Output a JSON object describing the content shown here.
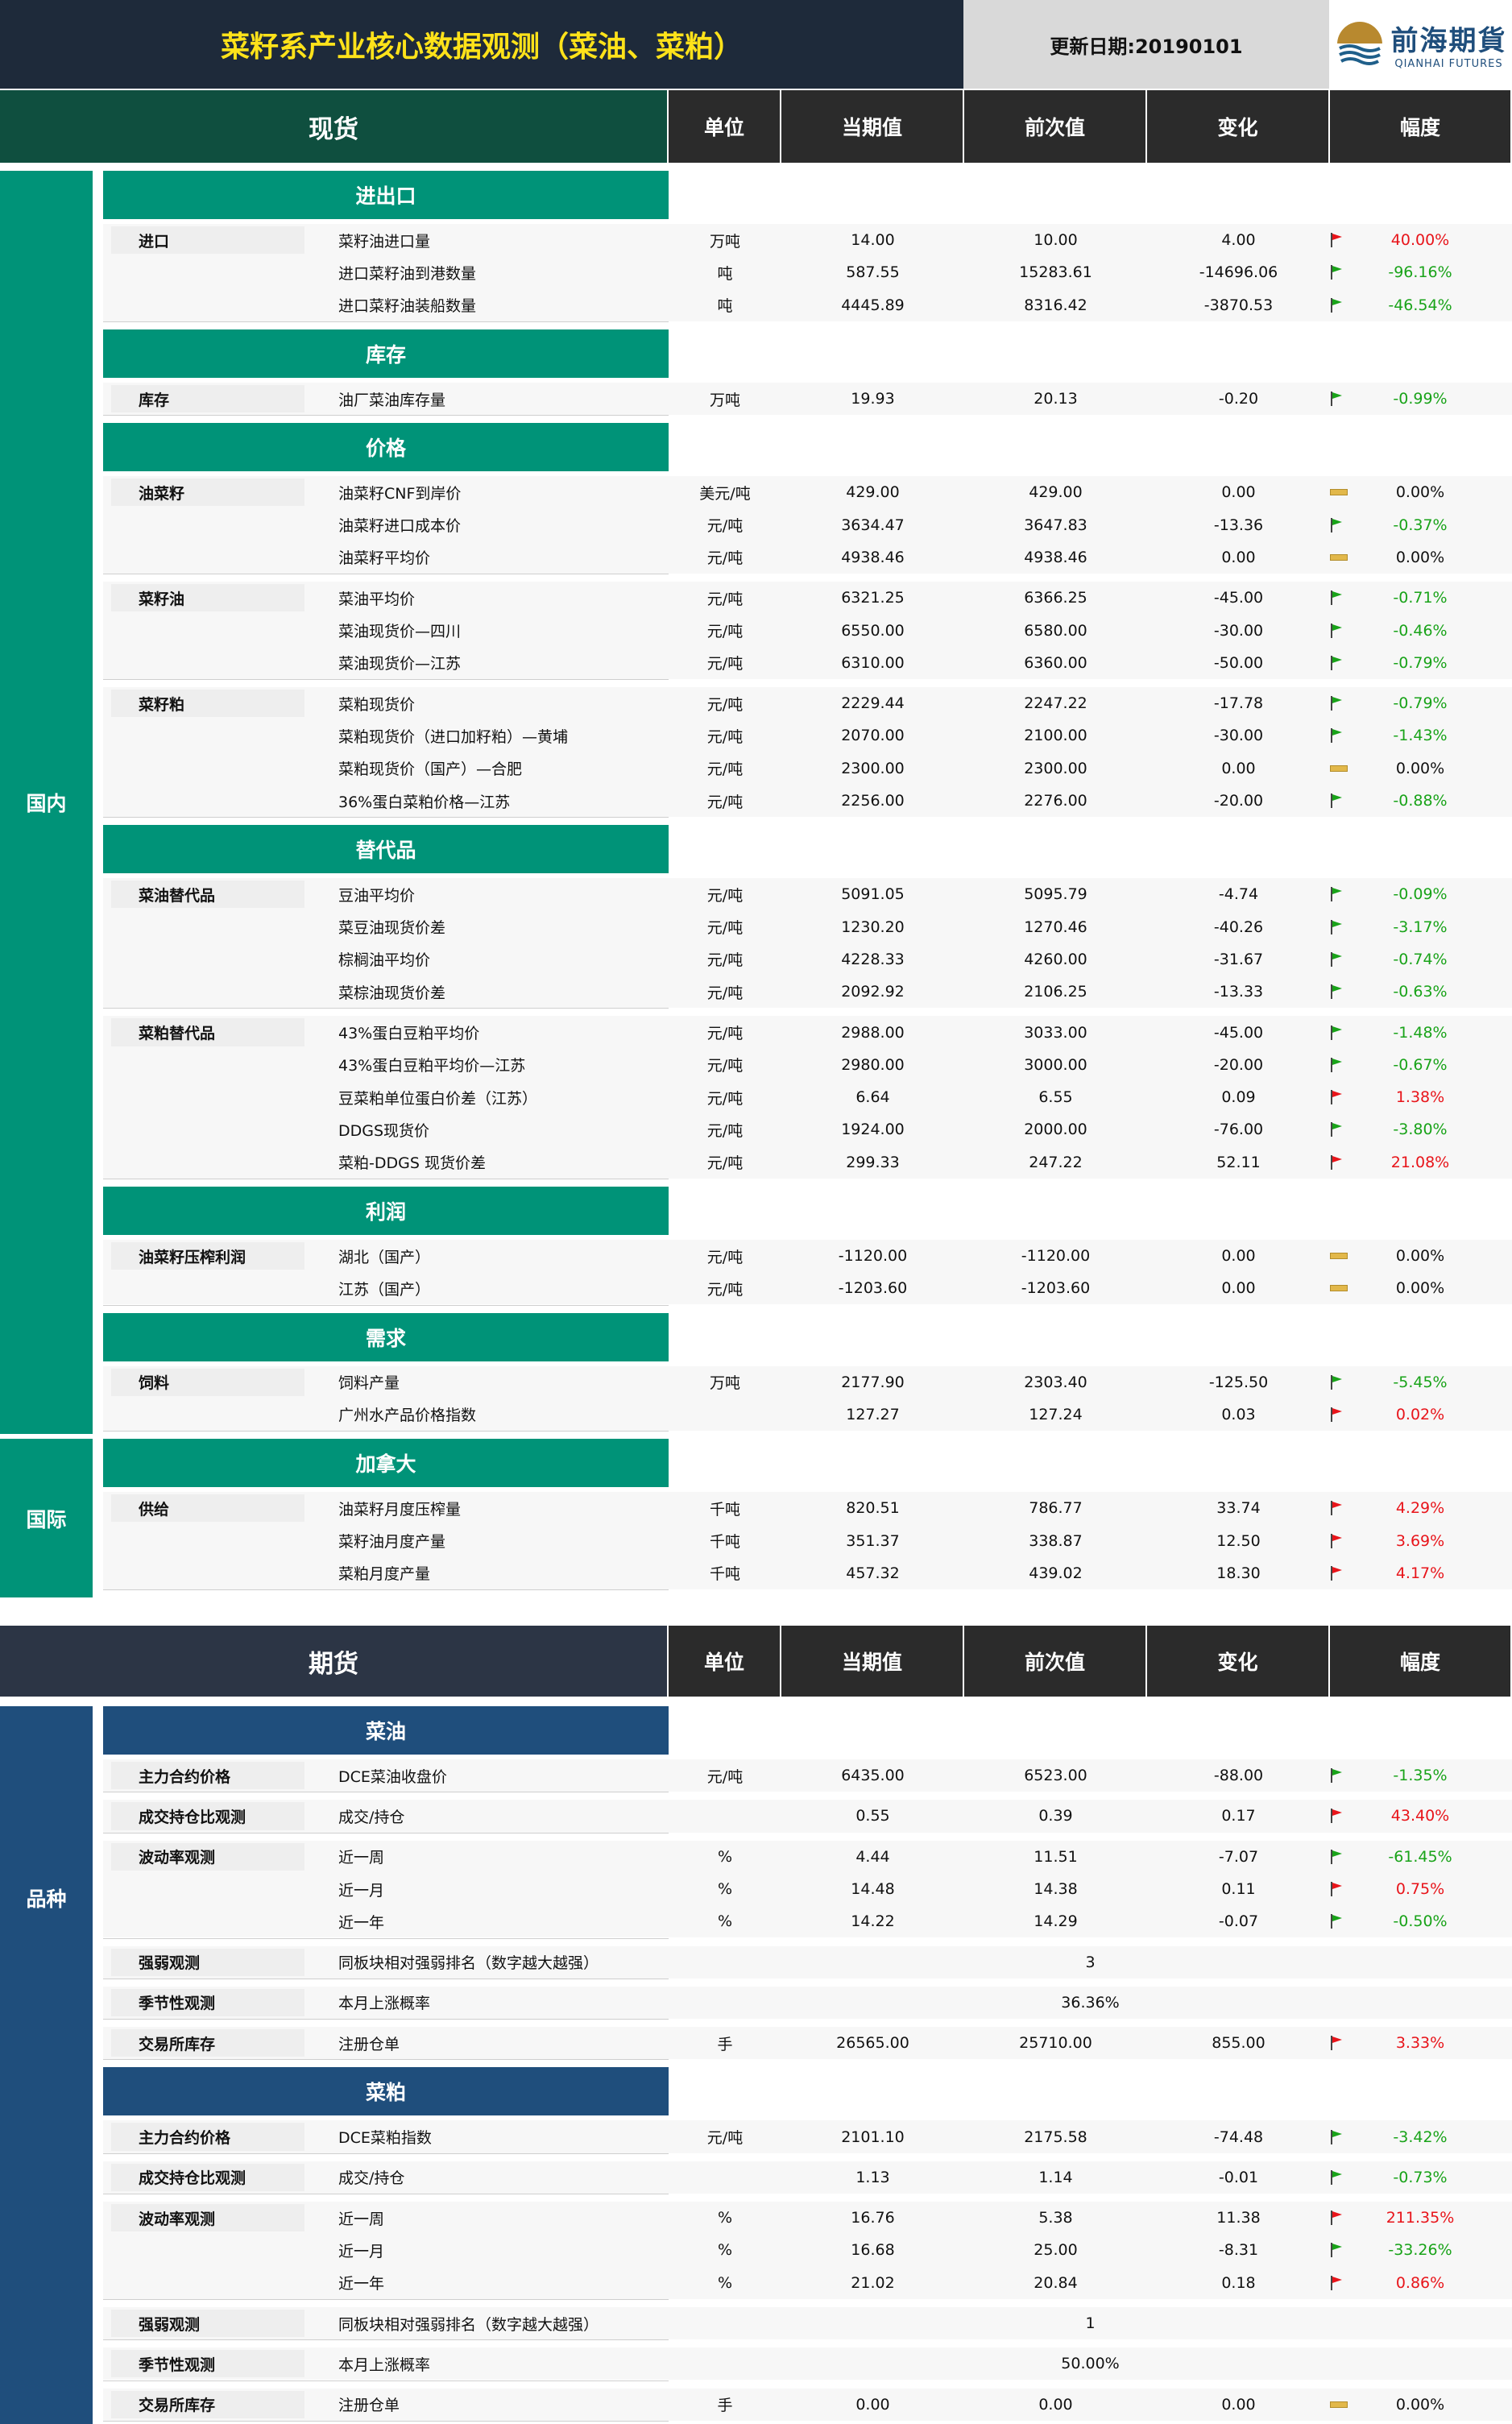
{
  "header": {
    "title": "菜籽系产业核心数据观测（菜油、菜粕）",
    "date_label": "更新日期:20190101",
    "logo_cn": "前海期貨",
    "logo_en": "QIANHAI FUTURES"
  },
  "colors": {
    "dark_header": "#1e2a3a",
    "spot_green": "#0f4f3f",
    "teal": "#009378",
    "futures_head": "#2c3545",
    "navy": "#1f4e7c",
    "up_red": "#e8141a",
    "down_green": "#19a319"
  },
  "spot_header": {
    "title": "现货",
    "unit": "单位",
    "current": "当期值",
    "previous": "前次值",
    "change": "变化",
    "pct": "幅度"
  },
  "futures_header": {
    "title": "期货",
    "unit": "单位",
    "current": "当期值",
    "previous": "前次值",
    "change": "变化",
    "pct": "幅度"
  },
  "side_labels": {
    "domestic": "国内",
    "international": "国际",
    "variety": "品种"
  },
  "spot": [
    {
      "section": "进出口",
      "groups": [
        {
          "name": "进口",
          "rows": [
            {
              "item": "菜籽油进口量",
              "unit": "万吨",
              "cur": "14.00",
              "prev": "10.00",
              "chg": "4.00",
              "pct": "40.00%",
              "dir": "up"
            },
            {
              "item": "进口菜籽油到港数量",
              "unit": "吨",
              "cur": "587.55",
              "prev": "15283.61",
              "chg": "-14696.06",
              "pct": "-96.16%",
              "dir": "down"
            },
            {
              "item": "进口菜籽油装船数量",
              "unit": "吨",
              "cur": "4445.89",
              "prev": "8316.42",
              "chg": "-3870.53",
              "pct": "-46.54%",
              "dir": "down"
            }
          ]
        }
      ]
    },
    {
      "section": "库存",
      "groups": [
        {
          "name": "库存",
          "rows": [
            {
              "item": "油厂菜油库存量",
              "unit": "万吨",
              "cur": "19.93",
              "prev": "20.13",
              "chg": "-0.20",
              "pct": "-0.99%",
              "dir": "down"
            }
          ]
        }
      ]
    },
    {
      "section": "价格",
      "groups": [
        {
          "name": "油菜籽",
          "rows": [
            {
              "item": "油菜籽CNF到岸价",
              "unit": "美元/吨",
              "cur": "429.00",
              "prev": "429.00",
              "chg": "0.00",
              "pct": "0.00%",
              "dir": "flat"
            },
            {
              "item": "油菜籽进口成本价",
              "unit": "元/吨",
              "cur": "3634.47",
              "prev": "3647.83",
              "chg": "-13.36",
              "pct": "-0.37%",
              "dir": "down"
            },
            {
              "item": "油菜籽平均价",
              "unit": "元/吨",
              "cur": "4938.46",
              "prev": "4938.46",
              "chg": "0.00",
              "pct": "0.00%",
              "dir": "flat"
            }
          ]
        },
        {
          "name": "菜籽油",
          "rows": [
            {
              "item": "菜油平均价",
              "unit": "元/吨",
              "cur": "6321.25",
              "prev": "6366.25",
              "chg": "-45.00",
              "pct": "-0.71%",
              "dir": "down"
            },
            {
              "item": "菜油现货价—四川",
              "unit": "元/吨",
              "cur": "6550.00",
              "prev": "6580.00",
              "chg": "-30.00",
              "pct": "-0.46%",
              "dir": "down"
            },
            {
              "item": "菜油现货价—江苏",
              "unit": "元/吨",
              "cur": "6310.00",
              "prev": "6360.00",
              "chg": "-50.00",
              "pct": "-0.79%",
              "dir": "down"
            }
          ]
        },
        {
          "name": "菜籽粕",
          "rows": [
            {
              "item": "菜粕现货价",
              "unit": "元/吨",
              "cur": "2229.44",
              "prev": "2247.22",
              "chg": "-17.78",
              "pct": "-0.79%",
              "dir": "down"
            },
            {
              "item": "菜粕现货价（进口加籽粕）—黄埔",
              "unit": "元/吨",
              "cur": "2070.00",
              "prev": "2100.00",
              "chg": "-30.00",
              "pct": "-1.43%",
              "dir": "down"
            },
            {
              "item": "菜粕现货价（国产）—合肥",
              "unit": "元/吨",
              "cur": "2300.00",
              "prev": "2300.00",
              "chg": "0.00",
              "pct": "0.00%",
              "dir": "flat"
            },
            {
              "item": "36%蛋白菜粕价格—江苏",
              "unit": "元/吨",
              "cur": "2256.00",
              "prev": "2276.00",
              "chg": "-20.00",
              "pct": "-0.88%",
              "dir": "down"
            }
          ]
        }
      ]
    },
    {
      "section": "替代品",
      "groups": [
        {
          "name": "菜油替代品",
          "rows": [
            {
              "item": "豆油平均价",
              "unit": "元/吨",
              "cur": "5091.05",
              "prev": "5095.79",
              "chg": "-4.74",
              "pct": "-0.09%",
              "dir": "down"
            },
            {
              "item": "菜豆油现货价差",
              "unit": "元/吨",
              "cur": "1230.20",
              "prev": "1270.46",
              "chg": "-40.26",
              "pct": "-3.17%",
              "dir": "down"
            },
            {
              "item": "棕榈油平均价",
              "unit": "元/吨",
              "cur": "4228.33",
              "prev": "4260.00",
              "chg": "-31.67",
              "pct": "-0.74%",
              "dir": "down"
            },
            {
              "item": "菜棕油现货价差",
              "unit": "元/吨",
              "cur": "2092.92",
              "prev": "2106.25",
              "chg": "-13.33",
              "pct": "-0.63%",
              "dir": "down"
            }
          ]
        },
        {
          "name": "菜粕替代品",
          "rows": [
            {
              "item": "43%蛋白豆粕平均价",
              "unit": "元/吨",
              "cur": "2988.00",
              "prev": "3033.00",
              "chg": "-45.00",
              "pct": "-1.48%",
              "dir": "down"
            },
            {
              "item": "43%蛋白豆粕平均价—江苏",
              "unit": "元/吨",
              "cur": "2980.00",
              "prev": "3000.00",
              "chg": "-20.00",
              "pct": "-0.67%",
              "dir": "down"
            },
            {
              "item": "豆菜粕单位蛋白价差（江苏）",
              "unit": "元/吨",
              "cur": "6.64",
              "prev": "6.55",
              "chg": "0.09",
              "pct": "1.38%",
              "dir": "up"
            },
            {
              "item": "DDGS现货价",
              "unit": "元/吨",
              "cur": "1924.00",
              "prev": "2000.00",
              "chg": "-76.00",
              "pct": "-3.80%",
              "dir": "down"
            },
            {
              "item": "菜粕-DDGS 现货价差",
              "unit": "元/吨",
              "cur": "299.33",
              "prev": "247.22",
              "chg": "52.11",
              "pct": "21.08%",
              "dir": "up"
            }
          ]
        }
      ]
    },
    {
      "section": "利润",
      "groups": [
        {
          "name": "油菜籽压榨利润",
          "rows": [
            {
              "item": "湖北（国产）",
              "unit": "元/吨",
              "cur": "-1120.00",
              "prev": "-1120.00",
              "chg": "0.00",
              "pct": "0.00%",
              "dir": "flat"
            },
            {
              "item": "江苏（国产）",
              "unit": "元/吨",
              "cur": "-1203.60",
              "prev": "-1203.60",
              "chg": "0.00",
              "pct": "0.00%",
              "dir": "flat"
            }
          ]
        }
      ]
    },
    {
      "section": "需求",
      "groups": [
        {
          "name": "饲料",
          "rows": [
            {
              "item": "饲料产量",
              "unit": "万吨",
              "cur": "2177.90",
              "prev": "2303.40",
              "chg": "-125.50",
              "pct": "-5.45%",
              "dir": "down"
            },
            {
              "item": "广州水产品价格指数",
              "unit": "",
              "cur": "127.27",
              "prev": "127.24",
              "chg": "0.03",
              "pct": "0.02%",
              "dir": "up"
            }
          ]
        }
      ]
    },
    {
      "section": "加拿大",
      "groups": [
        {
          "name": "供给",
          "rows": [
            {
              "item": "油菜籽月度压榨量",
              "unit": "千吨",
              "cur": "820.51",
              "prev": "786.77",
              "chg": "33.74",
              "pct": "4.29%",
              "dir": "up"
            },
            {
              "item": "菜籽油月度产量",
              "unit": "千吨",
              "cur": "351.37",
              "prev": "338.87",
              "chg": "12.50",
              "pct": "3.69%",
              "dir": "up"
            },
            {
              "item": "菜粕月度产量",
              "unit": "千吨",
              "cur": "457.32",
              "prev": "439.02",
              "chg": "18.30",
              "pct": "4.17%",
              "dir": "up"
            }
          ]
        }
      ]
    }
  ],
  "futures": [
    {
      "section": "菜油",
      "groups": [
        {
          "name": "主力合约价格",
          "rows": [
            {
              "item": "DCE菜油收盘价",
              "unit": "元/吨",
              "cur": "6435.00",
              "prev": "6523.00",
              "chg": "-88.00",
              "pct": "-1.35%",
              "dir": "down"
            }
          ]
        },
        {
          "name": "成交持仓比观测",
          "rows": [
            {
              "item": "成交/持仓",
              "unit": "",
              "cur": "0.55",
              "prev": "0.39",
              "chg": "0.17",
              "pct": "43.40%",
              "dir": "up"
            }
          ]
        },
        {
          "name": "波动率观测",
          "rows": [
            {
              "item": "近一周",
              "unit": "%",
              "cur": "4.44",
              "prev": "11.51",
              "chg": "-7.07",
              "pct": "-61.45%",
              "dir": "down"
            },
            {
              "item": "近一月",
              "unit": "%",
              "cur": "14.48",
              "prev": "14.38",
              "chg": "0.11",
              "pct": "0.75%",
              "dir": "up"
            },
            {
              "item": "近一年",
              "unit": "%",
              "cur": "14.22",
              "prev": "14.29",
              "chg": "-0.07",
              "pct": "-0.50%",
              "dir": "down"
            }
          ]
        },
        {
          "name": "强弱观测",
          "rows": [
            {
              "item": "同板块相对强弱排名（数字越大越强）",
              "merged": "3"
            }
          ]
        },
        {
          "name": "季节性观测",
          "rows": [
            {
              "item": "本月上涨概率",
              "merged": "36.36%"
            }
          ]
        },
        {
          "name": "交易所库存",
          "rows": [
            {
              "item": "注册仓单",
              "unit": "手",
              "cur": "26565.00",
              "prev": "25710.00",
              "chg": "855.00",
              "pct": "3.33%",
              "dir": "up"
            }
          ]
        }
      ]
    },
    {
      "section": "菜粕",
      "groups": [
        {
          "name": "主力合约价格",
          "rows": [
            {
              "item": "DCE菜粕指数",
              "unit": "元/吨",
              "cur": "2101.10",
              "prev": "2175.58",
              "chg": "-74.48",
              "pct": "-3.42%",
              "dir": "down"
            }
          ]
        },
        {
          "name": "成交持仓比观测",
          "rows": [
            {
              "item": "成交/持仓",
              "unit": "",
              "cur": "1.13",
              "prev": "1.14",
              "chg": "-0.01",
              "pct": "-0.73%",
              "dir": "down"
            }
          ]
        },
        {
          "name": "波动率观测",
          "rows": [
            {
              "item": "近一周",
              "unit": "%",
              "cur": "16.76",
              "prev": "5.38",
              "chg": "11.38",
              "pct": "211.35%",
              "dir": "up"
            },
            {
              "item": "近一月",
              "unit": "%",
              "cur": "16.68",
              "prev": "25.00",
              "chg": "-8.31",
              "pct": "-33.26%",
              "dir": "down"
            },
            {
              "item": "近一年",
              "unit": "%",
              "cur": "21.02",
              "prev": "20.84",
              "chg": "0.18",
              "pct": "0.86%",
              "dir": "up"
            }
          ]
        },
        {
          "name": "强弱观测",
          "rows": [
            {
              "item": "同板块相对强弱排名（数字越大越强）",
              "merged": "1"
            }
          ]
        },
        {
          "name": "季节性观测",
          "rows": [
            {
              "item": "本月上涨概率",
              "merged": "50.00%"
            }
          ]
        },
        {
          "name": "交易所库存",
          "rows": [
            {
              "item": "注册仓单",
              "unit": "手",
              "cur": "0.00",
              "prev": "0.00",
              "chg": "0.00",
              "pct": "0.00%",
              "dir": "flat"
            }
          ]
        }
      ]
    }
  ]
}
